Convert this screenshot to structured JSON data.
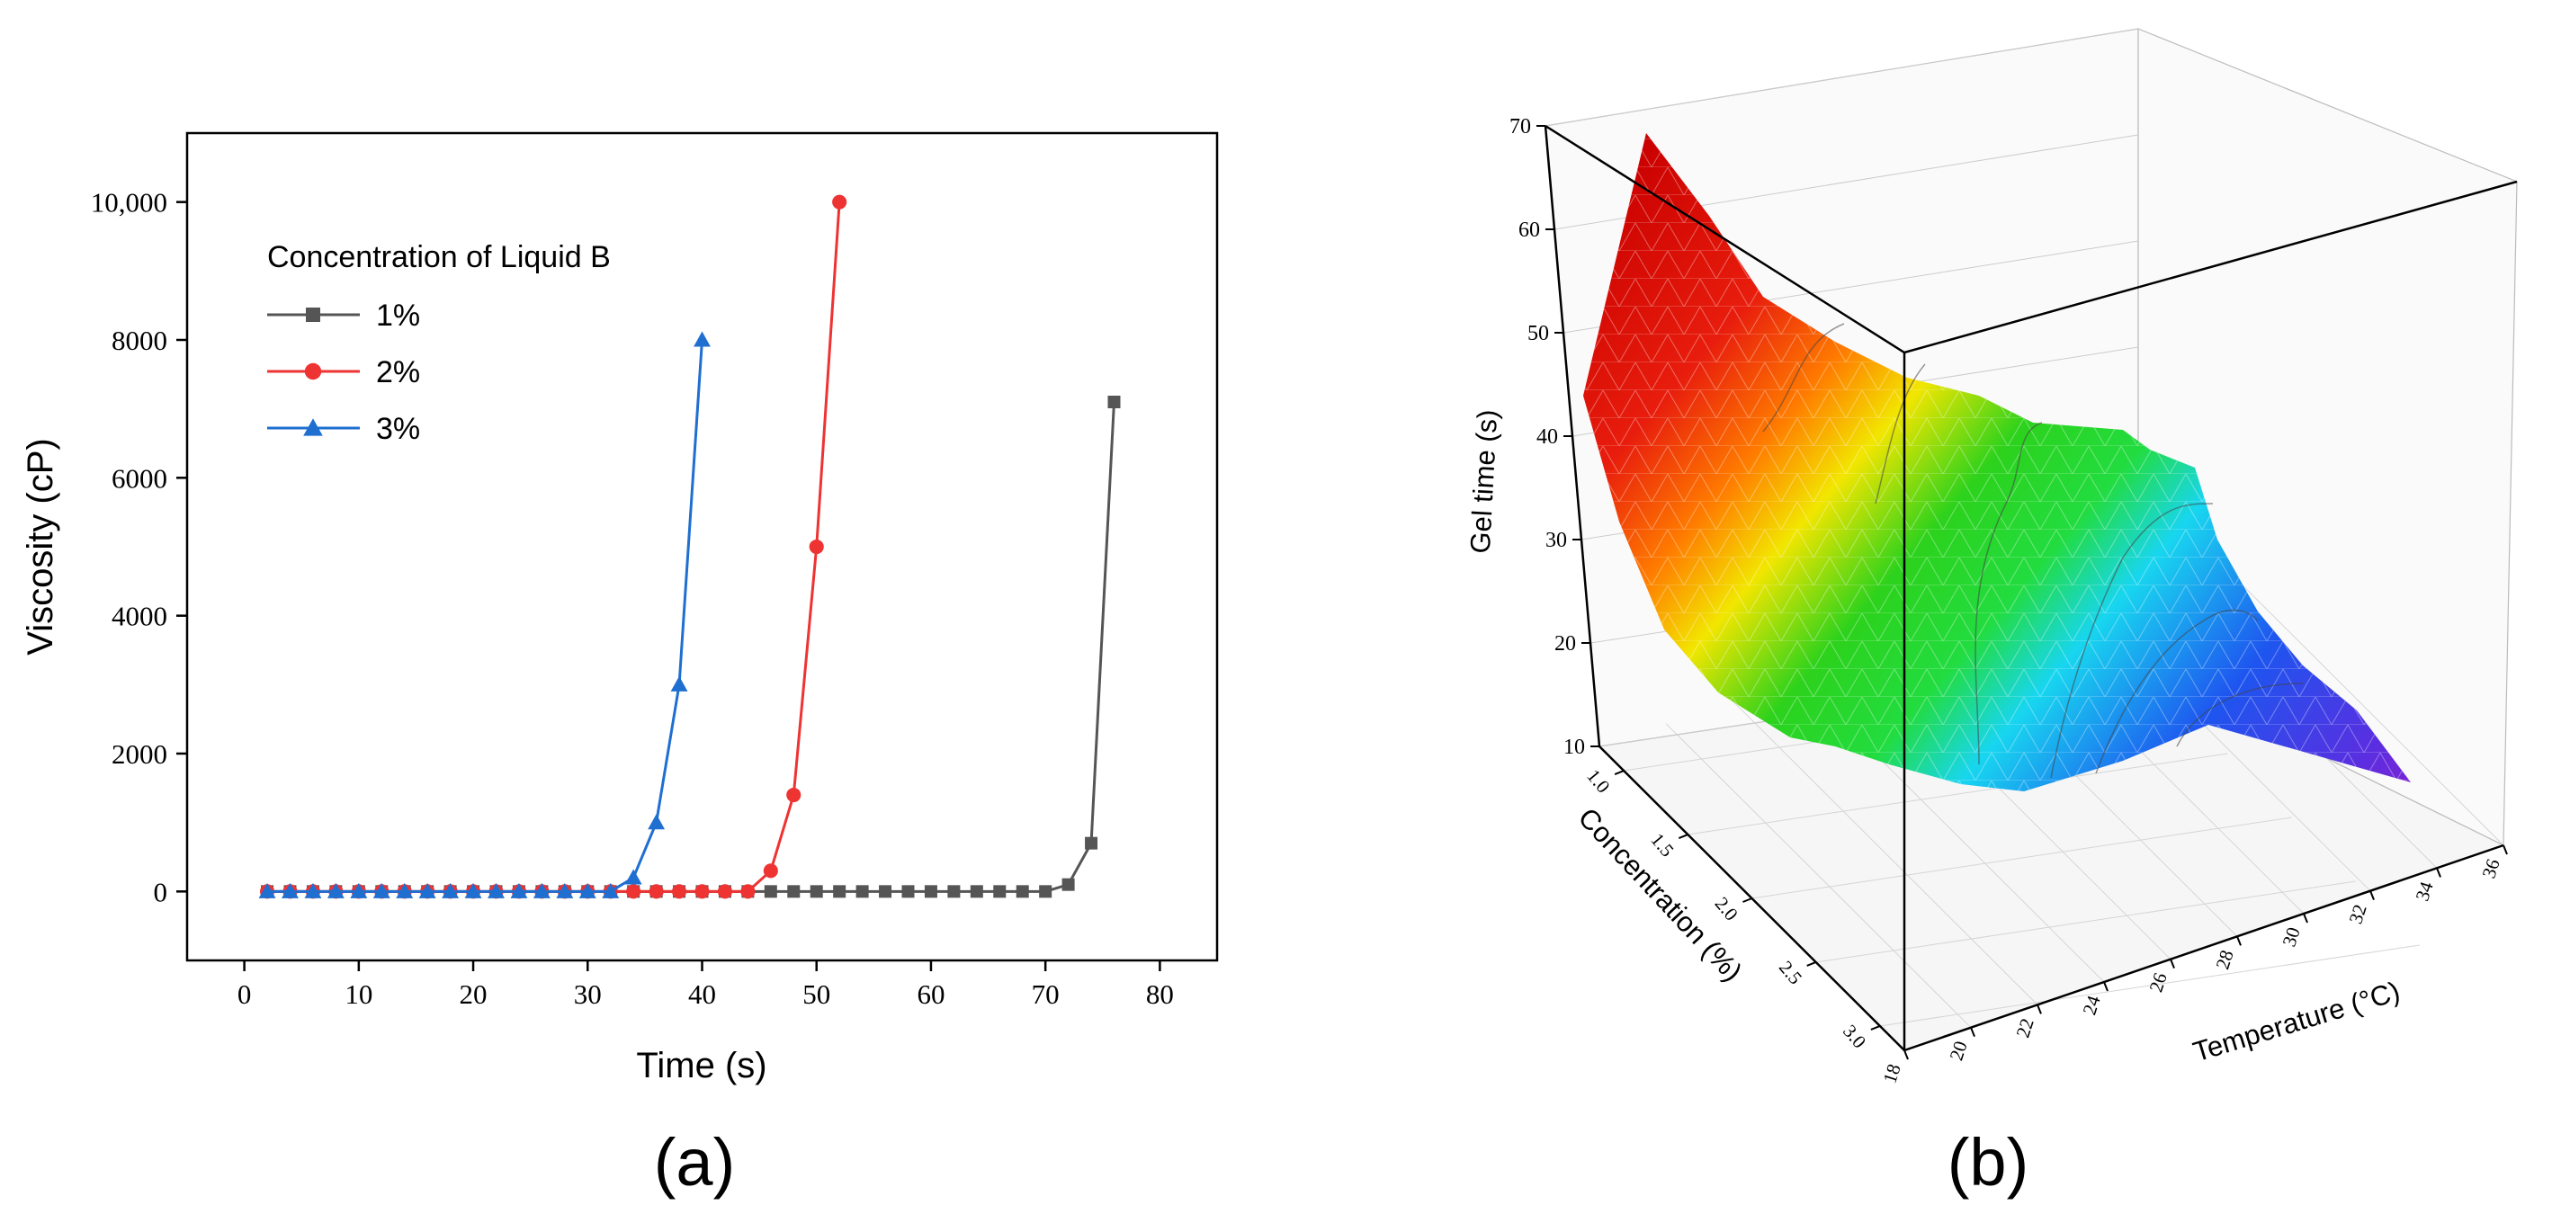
{
  "chart_data": [
    {
      "panel_label": "(a)",
      "type": "line",
      "xlabel": "Time (s)",
      "ylabel": "Viscosity (cP)",
      "xlim": [
        -5,
        85
      ],
      "ylim": [
        -1000,
        11000
      ],
      "xticks": [
        0,
        10,
        20,
        30,
        40,
        50,
        60,
        70,
        80
      ],
      "xtick_labels": [
        "0",
        "10",
        "20",
        "30",
        "40",
        "50",
        "60",
        "70",
        "80"
      ],
      "yticks": [
        0,
        2000,
        4000,
        6000,
        8000,
        10000
      ],
      "ytick_labels": [
        "0",
        "2000",
        "4000",
        "6000",
        "8000",
        "10,000"
      ],
      "legend_title": "Concentration of Liquid B",
      "legend_position": "top-left",
      "series": [
        {
          "name": "1%",
          "color": "#555555",
          "marker": "square",
          "x": [
            2,
            4,
            6,
            8,
            10,
            12,
            14,
            16,
            18,
            20,
            22,
            24,
            26,
            28,
            30,
            32,
            34,
            36,
            38,
            40,
            42,
            44,
            46,
            48,
            50,
            52,
            54,
            56,
            58,
            60,
            62,
            64,
            66,
            68,
            70,
            72,
            74,
            76
          ],
          "y": [
            0,
            0,
            0,
            0,
            0,
            0,
            0,
            0,
            0,
            0,
            0,
            0,
            0,
            0,
            0,
            0,
            0,
            0,
            0,
            0,
            0,
            0,
            0,
            0,
            0,
            0,
            0,
            0,
            0,
            0,
            0,
            0,
            0,
            0,
            0,
            100,
            700,
            7100
          ]
        },
        {
          "name": "2%",
          "color": "#ee3333",
          "marker": "circle",
          "x": [
            2,
            4,
            6,
            8,
            10,
            12,
            14,
            16,
            18,
            20,
            22,
            24,
            26,
            28,
            30,
            32,
            34,
            36,
            38,
            40,
            42,
            44,
            46,
            48,
            50,
            52
          ],
          "y": [
            0,
            0,
            0,
            0,
            0,
            0,
            0,
            0,
            0,
            0,
            0,
            0,
            0,
            0,
            0,
            0,
            0,
            0,
            0,
            0,
            0,
            0,
            300,
            1400,
            5000,
            10000
          ]
        },
        {
          "name": "3%",
          "color": "#1f6fd1",
          "marker": "triangle",
          "x": [
            2,
            4,
            6,
            8,
            10,
            12,
            14,
            16,
            18,
            20,
            22,
            24,
            26,
            28,
            30,
            32,
            34,
            36,
            38,
            40
          ],
          "y": [
            0,
            0,
            0,
            0,
            0,
            0,
            0,
            0,
            0,
            0,
            0,
            0,
            0,
            0,
            0,
            0,
            200,
            1000,
            3000,
            8000
          ]
        }
      ]
    },
    {
      "panel_label": "(b)",
      "type": "surface3d",
      "zlabel": "Gel time (s)",
      "xlabel": "Temperature (°C)",
      "ylabel": "Concentration (%)",
      "zlim": [
        10,
        70
      ],
      "zticks": [
        "70",
        "60",
        "50",
        "40",
        "30",
        "20",
        "10"
      ],
      "temperature_ticks": [
        "18",
        "20",
        "22",
        "24",
        "26",
        "28",
        "30",
        "32",
        "34",
        "36"
      ],
      "concentration_ticks": [
        "1.0",
        "1.5",
        "2.0",
        "2.5",
        "3.0"
      ],
      "colormap": [
        "#d40000",
        "#ff6a00",
        "#f5e500",
        "#2ad21a",
        "#18d8ee",
        "#1f58f0",
        "#7b1fd6"
      ],
      "temperature": [
        18,
        36
      ],
      "concentration": [
        1.0,
        3.0
      ],
      "gel_time_approx": {
        "min": 12,
        "max": 68,
        "trend": "decreases with increasing temperature and concentration"
      }
    }
  ]
}
